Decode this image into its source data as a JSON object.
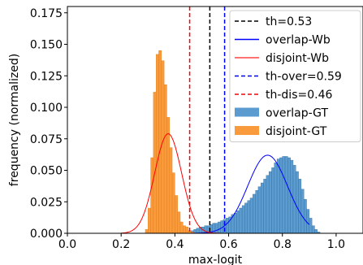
{
  "chart_data": {
    "type": "histogram",
    "xlabel": "max-logit",
    "ylabel": "frequency (normalized)",
    "xlim": [
      0.0,
      1.1
    ],
    "ylim": [
      0.0,
      0.18
    ],
    "xticks": [
      "0.0",
      "0.2",
      "0.4",
      "0.6",
      "0.8",
      "1.0"
    ],
    "yticks": [
      "0.000",
      "0.025",
      "0.050",
      "0.075",
      "0.100",
      "0.125",
      "0.150",
      "0.175"
    ],
    "xtick_values": [
      0.0,
      0.2,
      0.4,
      0.6,
      0.8,
      1.0
    ],
    "ytick_values": [
      0.0,
      0.025,
      0.05,
      0.075,
      0.1,
      0.125,
      0.15,
      0.175
    ],
    "grid": false,
    "legend_position": "top-right",
    "vlines": [
      {
        "label": "th=0.53",
        "x": 0.53,
        "color": "#000000",
        "style": "dashed"
      },
      {
        "label": "th-over=0.59",
        "x": 0.585,
        "color": "#0000ff",
        "style": "dashed"
      },
      {
        "label": "th-dis=0.46",
        "x": 0.455,
        "color": "#ff0000",
        "style": "dashed"
      }
    ],
    "fit_curves": [
      {
        "label": "overlap-Wb",
        "color": "#0000ff",
        "mean": 0.745,
        "sd": 0.074,
        "peak": 0.062,
        "xmin": 0.4,
        "xmax": 0.9
      },
      {
        "label": "disjoint-Wb",
        "color": "#ff0000",
        "mean": 0.375,
        "sd": 0.05,
        "peak": 0.079,
        "xmin": 0.2,
        "xmax": 0.6
      }
    ],
    "series": [
      {
        "name": "overlap-GT",
        "color": "#5b9bd0",
        "edge": "#2f6f9f",
        "bin_start": 0.44,
        "bin_width": 0.01,
        "values": [
          0.001,
          0.002,
          0.002,
          0.003,
          0.004,
          0.005,
          0.005,
          0.006,
          0.006,
          0.007,
          0.008,
          0.008,
          0.009,
          0.01,
          0.011,
          0.012,
          0.013,
          0.015,
          0.016,
          0.018,
          0.02,
          0.022,
          0.024,
          0.026,
          0.028,
          0.031,
          0.034,
          0.037,
          0.04,
          0.043,
          0.046,
          0.049,
          0.052,
          0.056,
          0.059,
          0.06,
          0.061,
          0.061,
          0.06,
          0.058,
          0.054,
          0.049,
          0.043,
          0.035,
          0.027,
          0.019,
          0.012,
          0.006,
          0.003,
          0.001
        ]
      },
      {
        "name": "disjoint-GT",
        "color": "#f99b3c",
        "edge": "#e07b10",
        "bin_start": 0.29,
        "bin_width": 0.01,
        "values": [
          0.003,
          0.02,
          0.06,
          0.112,
          0.142,
          0.145,
          0.137,
          0.118,
          0.092,
          0.068,
          0.048,
          0.03,
          0.017,
          0.009,
          0.006,
          0.005,
          0.002,
          0.001
        ]
      }
    ]
  },
  "legend": {
    "items": [
      {
        "label": "th=0.53",
        "kind": "dashed",
        "color": "#000000"
      },
      {
        "label": "overlap-Wb",
        "kind": "line",
        "color": "#0000ff"
      },
      {
        "label": "disjoint-Wb",
        "kind": "line",
        "color": "#ff4444"
      },
      {
        "label": "th-over=0.59",
        "kind": "dashed",
        "color": "#0000ff"
      },
      {
        "label": "th-dis=0.46",
        "kind": "dashed",
        "color": "#ff0000"
      },
      {
        "label": "overlap-GT",
        "kind": "patch",
        "color": "#5b9bd0"
      },
      {
        "label": "disjoint-GT",
        "kind": "patch",
        "color": "#f99b3c"
      }
    ]
  }
}
